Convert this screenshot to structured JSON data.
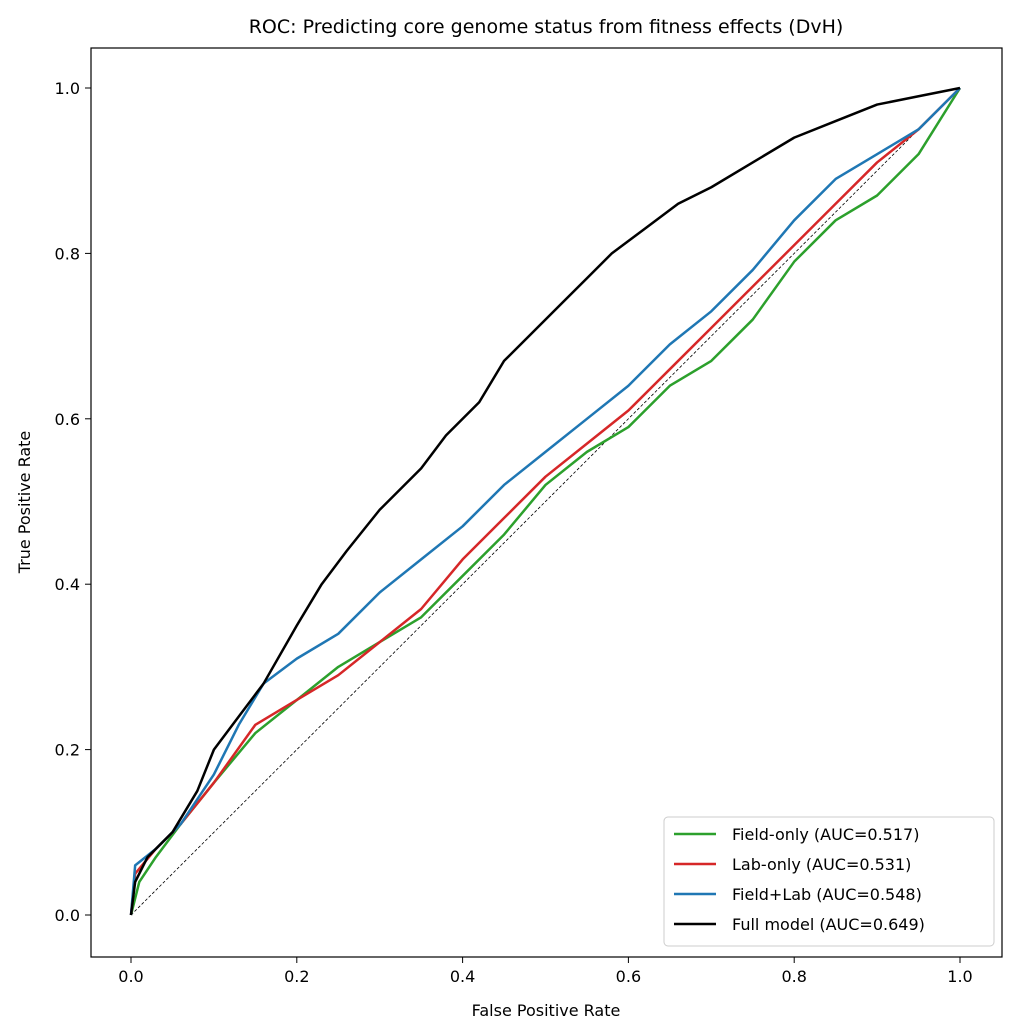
{
  "chart_data": {
    "type": "line",
    "title": "ROC: Predicting core genome status from fitness effects (DvH)",
    "xlabel": "False Positive Rate",
    "ylabel": "True Positive Rate",
    "xlim": [
      -0.05,
      1.05
    ],
    "ylim": [
      -0.05,
      1.05
    ],
    "xticks": [
      "0.0",
      "0.2",
      "0.4",
      "0.6",
      "0.8",
      "1.0"
    ],
    "yticks": [
      "0.0",
      "0.2",
      "0.4",
      "0.6",
      "0.8",
      "1.0"
    ],
    "grid": false,
    "legend_position": "lower-right",
    "reference_line": {
      "style": "dashed",
      "color": "#000000",
      "x": [
        0,
        1
      ],
      "y": [
        0,
        1
      ]
    },
    "series": [
      {
        "name": "Field-only (AUC=0.517)",
        "color": "#2ca02c",
        "x": [
          0,
          0.01,
          0.03,
          0.06,
          0.1,
          0.15,
          0.2,
          0.25,
          0.3,
          0.35,
          0.4,
          0.45,
          0.5,
          0.55,
          0.6,
          0.65,
          0.7,
          0.75,
          0.8,
          0.85,
          0.9,
          0.95,
          1
        ],
        "y": [
          0,
          0.04,
          0.07,
          0.11,
          0.16,
          0.22,
          0.26,
          0.3,
          0.33,
          0.36,
          0.41,
          0.46,
          0.52,
          0.56,
          0.59,
          0.64,
          0.67,
          0.72,
          0.79,
          0.84,
          0.87,
          0.92,
          1
        ]
      },
      {
        "name": "Lab-only (AUC=0.531)",
        "color": "#d62728",
        "x": [
          0,
          0.005,
          0.03,
          0.06,
          0.1,
          0.15,
          0.2,
          0.25,
          0.3,
          0.35,
          0.4,
          0.45,
          0.5,
          0.55,
          0.6,
          0.65,
          0.7,
          0.75,
          0.8,
          0.85,
          0.9,
          0.95,
          1
        ],
        "y": [
          0,
          0.05,
          0.08,
          0.11,
          0.16,
          0.23,
          0.26,
          0.29,
          0.33,
          0.37,
          0.43,
          0.48,
          0.53,
          0.57,
          0.61,
          0.66,
          0.71,
          0.76,
          0.81,
          0.86,
          0.91,
          0.95,
          1
        ]
      },
      {
        "name": "Field+Lab (AUC=0.548)",
        "color": "#1f77b4",
        "x": [
          0,
          0.005,
          0.03,
          0.06,
          0.1,
          0.13,
          0.16,
          0.2,
          0.25,
          0.3,
          0.35,
          0.4,
          0.45,
          0.5,
          0.55,
          0.6,
          0.65,
          0.7,
          0.75,
          0.8,
          0.85,
          0.9,
          0.95,
          1
        ],
        "y": [
          0,
          0.06,
          0.08,
          0.11,
          0.17,
          0.23,
          0.28,
          0.31,
          0.34,
          0.39,
          0.43,
          0.47,
          0.52,
          0.56,
          0.6,
          0.64,
          0.69,
          0.73,
          0.78,
          0.84,
          0.89,
          0.92,
          0.95,
          1
        ]
      },
      {
        "name": "Full model (AUC=0.649)",
        "color": "#000000",
        "x": [
          0,
          0.005,
          0.02,
          0.05,
          0.08,
          0.1,
          0.13,
          0.16,
          0.2,
          0.23,
          0.26,
          0.3,
          0.35,
          0.38,
          0.42,
          0.45,
          0.48,
          0.52,
          0.55,
          0.58,
          0.62,
          0.66,
          0.7,
          0.75,
          0.8,
          0.85,
          0.9,
          0.95,
          1
        ],
        "y": [
          0,
          0.04,
          0.07,
          0.1,
          0.15,
          0.2,
          0.24,
          0.28,
          0.35,
          0.4,
          0.44,
          0.49,
          0.54,
          0.58,
          0.62,
          0.67,
          0.7,
          0.74,
          0.77,
          0.8,
          0.83,
          0.86,
          0.88,
          0.91,
          0.94,
          0.96,
          0.98,
          0.99,
          1
        ]
      }
    ]
  }
}
